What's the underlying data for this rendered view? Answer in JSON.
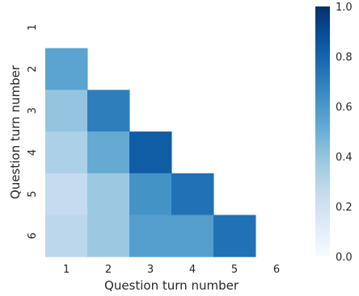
{
  "chart_data": {
    "type": "heatmap",
    "title": "",
    "xlabel": "Question turn number",
    "ylabel": "Question turn number",
    "x_categories": [
      "1",
      "2",
      "3",
      "4",
      "5",
      "6"
    ],
    "y_categories": [
      "1",
      "2",
      "3",
      "4",
      "5",
      "6"
    ],
    "mask": "upper-triangle including diagonal",
    "values": [
      [
        null,
        null,
        null,
        null,
        null,
        null
      ],
      [
        0.55,
        null,
        null,
        null,
        null,
        null
      ],
      [
        0.4,
        0.7,
        null,
        null,
        null,
        null
      ],
      [
        0.33,
        0.52,
        0.83,
        null,
        null,
        null
      ],
      [
        0.25,
        0.38,
        0.62,
        0.75,
        null,
        null
      ],
      [
        0.28,
        0.38,
        0.57,
        0.57,
        0.75,
        null
      ]
    ],
    "colorscale": "Blues",
    "colorbar": {
      "range": [
        0.0,
        1.0
      ],
      "ticks": [
        "0.0",
        "0.2",
        "0.4",
        "0.6",
        "0.8",
        "1.0"
      ]
    },
    "grid": false
  }
}
